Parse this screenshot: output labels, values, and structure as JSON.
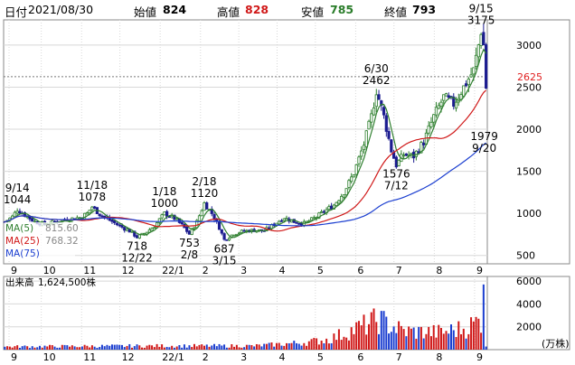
{
  "header": {
    "date_label": "日付",
    "date": "2021/08/30",
    "open_label": "始値",
    "open": "824",
    "high_label": "高値",
    "high": "828",
    "low_label": "安値",
    "low": "785",
    "close_label": "終値",
    "close": "793"
  },
  "colors": {
    "up": "#2a7d2a",
    "down": "#1c1c90",
    "ma5": "#2f7f2f",
    "ma25": "#d01818",
    "ma75": "#1c3fd0",
    "high_value": "#d01818",
    "low_value": "#2a7d2a",
    "volume_up": "#d01818",
    "volume_down": "#1c3fd0",
    "current_marker": "#e02020"
  },
  "chart_data": [
    {
      "type": "candlestick",
      "y_ticks": [
        500,
        1000,
        1500,
        2000,
        2500,
        3000
      ],
      "ylim": [
        400,
        3300
      ],
      "x_labels": [
        "9",
        "10",
        "11",
        "12",
        "22/1",
        "2",
        "3",
        "4",
        "5",
        "6",
        "7",
        "8",
        "9"
      ],
      "current_price": 2625,
      "legend": [
        {
          "label": "MA(5)",
          "value": "815.60"
        },
        {
          "label": "MA(25)",
          "value": "768.32"
        },
        {
          "label": "MA(75)",
          "value": ""
        }
      ],
      "annotations": [
        {
          "date": "9/14",
          "value": "1044"
        },
        {
          "date": "11/18",
          "value": "1078"
        },
        {
          "date": "12/22",
          "value": "718"
        },
        {
          "date": "1/18",
          "value": "1000"
        },
        {
          "date": "2/8",
          "value": "753"
        },
        {
          "date": "2/18",
          "value": "1120"
        },
        {
          "date": "3/15",
          "value": "687"
        },
        {
          "date": "6/30",
          "value": "2462"
        },
        {
          "date": "7/12",
          "value": "1576"
        },
        {
          "date": "9/15",
          "value": "3175"
        },
        {
          "date": "9/20",
          "value": "1979"
        }
      ],
      "price_path": [
        [
          0,
          900
        ],
        [
          3,
          960
        ],
        [
          5,
          1044
        ],
        [
          8,
          980
        ],
        [
          12,
          900
        ],
        [
          16,
          870
        ],
        [
          20,
          900
        ],
        [
          25,
          930
        ],
        [
          30,
          950
        ],
        [
          33,
          1000
        ],
        [
          35,
          1078
        ],
        [
          38,
          990
        ],
        [
          42,
          920
        ],
        [
          46,
          850
        ],
        [
          50,
          790
        ],
        [
          53,
          718
        ],
        [
          56,
          760
        ],
        [
          60,
          850
        ],
        [
          64,
          1000
        ],
        [
          68,
          940
        ],
        [
          71,
          860
        ],
        [
          74,
          753
        ],
        [
          77,
          900
        ],
        [
          80,
          1120
        ],
        [
          83,
          1000
        ],
        [
          86,
          830
        ],
        [
          88,
          687
        ],
        [
          92,
          760
        ],
        [
          96,
          790
        ],
        [
          100,
          800
        ],
        [
          104,
          790
        ],
        [
          108,
          870
        ],
        [
          112,
          950
        ],
        [
          116,
          900
        ],
        [
          120,
          880
        ],
        [
          124,
          940
        ],
        [
          128,
          1020
        ],
        [
          132,
          1100
        ],
        [
          136,
          1250
        ],
        [
          140,
          1480
        ],
        [
          144,
          1820
        ],
        [
          147,
          2150
        ],
        [
          149,
          2462
        ],
        [
          152,
          2150
        ],
        [
          155,
          1750
        ],
        [
          157,
          1576
        ],
        [
          160,
          1700
        ],
        [
          164,
          1680
        ],
        [
          168,
          1850
        ],
        [
          172,
          2150
        ],
        [
          176,
          2380
        ],
        [
          180,
          2300
        ],
        [
          184,
          2500
        ],
        [
          188,
          2700
        ],
        [
          190,
          3000
        ],
        [
          191,
          3175
        ],
        [
          192,
          3000
        ],
        [
          193,
          2500
        ]
      ],
      "ma_periods": [
        5,
        25,
        75
      ],
      "ma_labels_visible": [
        "MA(5)",
        "MA(25)",
        "MA(75)"
      ]
    },
    {
      "type": "bar",
      "title": "出来高",
      "summary_value": "1,624,500株",
      "unit": "(万株)",
      "y_ticks": [
        2000,
        4000,
        6000
      ],
      "ylim": [
        0,
        6400
      ],
      "x_labels": [
        "9",
        "10",
        "11",
        "12",
        "22/1",
        "2",
        "3",
        "4",
        "5",
        "6",
        "7",
        "8",
        "9"
      ],
      "volume_profile": [
        [
          0,
          260
        ],
        [
          30,
          300
        ],
        [
          60,
          330
        ],
        [
          100,
          330
        ],
        [
          120,
          620
        ],
        [
          130,
          900
        ],
        [
          140,
          1750
        ],
        [
          150,
          2600
        ],
        [
          160,
          1600
        ],
        [
          175,
          1500
        ],
        [
          185,
          1900
        ],
        [
          191,
          2600
        ],
        [
          192,
          5700
        ],
        [
          193,
          400
        ]
      ]
    }
  ]
}
